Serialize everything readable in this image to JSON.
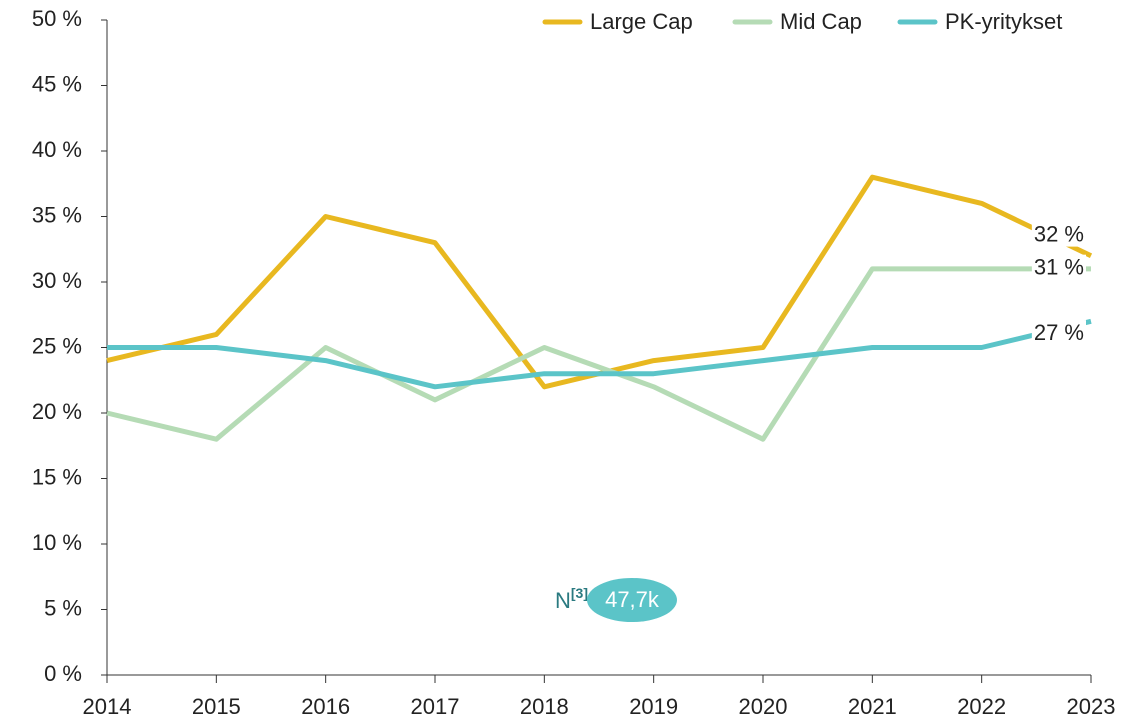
{
  "chart_data": {
    "type": "line",
    "x": [
      2014,
      2015,
      2016,
      2017,
      2018,
      2019,
      2020,
      2021,
      2022,
      2023
    ],
    "xlim": [
      2014,
      2023
    ],
    "xticks": [
      2014,
      2015,
      2016,
      2017,
      2018,
      2019,
      2020,
      2021,
      2022,
      2023
    ],
    "ylim": [
      0,
      50
    ],
    "yticks": [
      {
        "value": 0,
        "label": "0 %"
      },
      {
        "value": 5,
        "label": "5 %"
      },
      {
        "value": 10,
        "label": "10 %"
      },
      {
        "value": 15,
        "label": "15 %"
      },
      {
        "value": 20,
        "label": "20 %"
      },
      {
        "value": 25,
        "label": "25 %"
      },
      {
        "value": 30,
        "label": "30 %"
      },
      {
        "value": 35,
        "label": "35 %"
      },
      {
        "value": 40,
        "label": "40 %"
      },
      {
        "value": 45,
        "label": "45 %"
      },
      {
        "value": 50,
        "label": "50 %"
      }
    ],
    "grid": false,
    "legend": "top-right",
    "series": [
      {
        "name": "Large Cap",
        "color": "#e8b820",
        "values": [
          24,
          26,
          35,
          33,
          22,
          24,
          25,
          38,
          36,
          32
        ],
        "value_labels": [
          null,
          null,
          null,
          null,
          null,
          null,
          null,
          null,
          null,
          "32 %"
        ]
      },
      {
        "name": "Mid Cap",
        "color": "#b5dbb5",
        "values": [
          20,
          18,
          25,
          21,
          25,
          22,
          18,
          31,
          31,
          31
        ],
        "value_labels": [
          null,
          null,
          null,
          null,
          null,
          null,
          null,
          null,
          null,
          "31 %"
        ]
      },
      {
        "name": "PK-yritykset",
        "color": "#5bc4c8",
        "values": [
          25,
          25,
          24,
          22,
          23,
          23,
          24,
          25,
          25,
          27
        ],
        "value_labels": [
          null,
          null,
          null,
          null,
          null,
          null,
          null,
          null,
          null,
          "27 %"
        ]
      }
    ],
    "annotation": {
      "text": "N",
      "superscript": "[3]",
      "suffix": ":",
      "badge": "47,7k"
    }
  }
}
